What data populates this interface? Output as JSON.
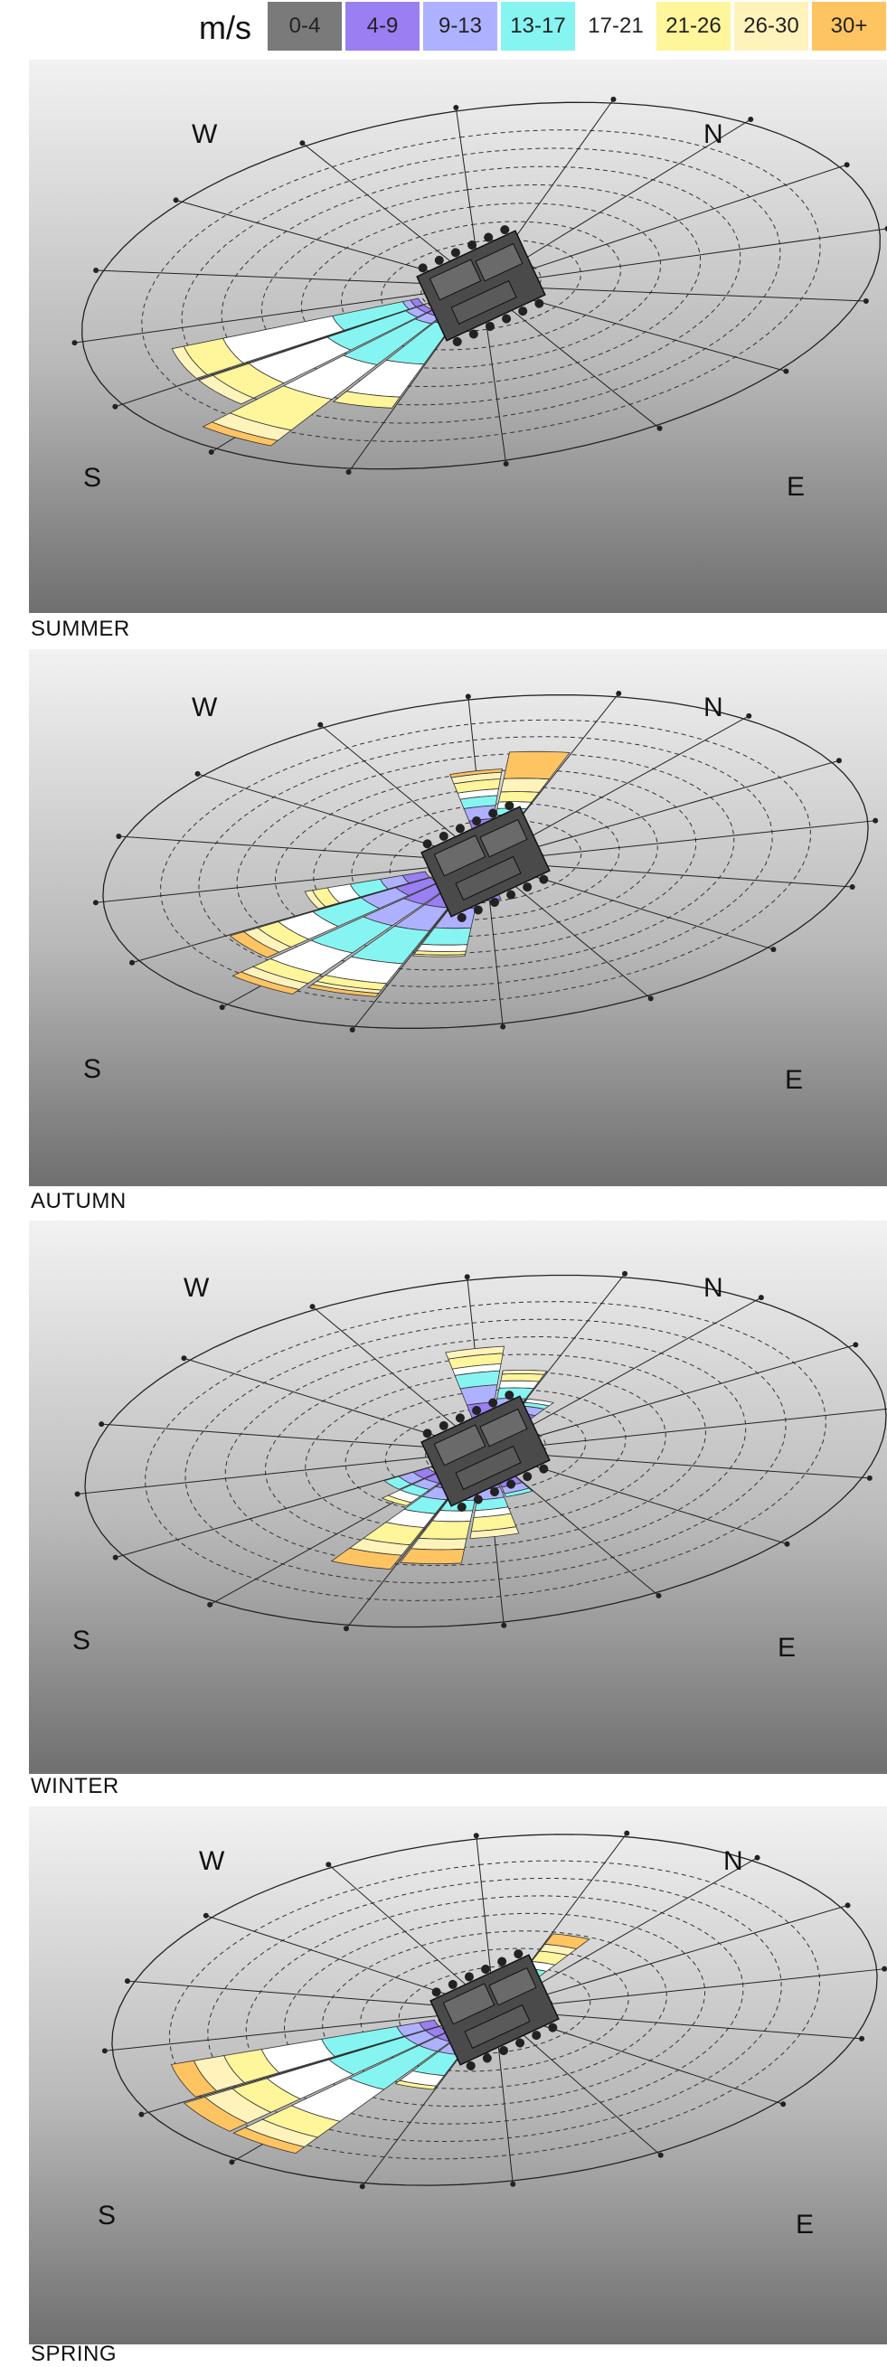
{
  "legend": {
    "unit": "m/s",
    "bins": [
      {
        "label": "0-4",
        "color": "#7a7a7a"
      },
      {
        "label": "4-9",
        "color": "#9a7ff2"
      },
      {
        "label": "9-13",
        "color": "#aeb1ff"
      },
      {
        "label": "13-17",
        "color": "#86f5f2"
      },
      {
        "label": "17-21",
        "color": "#ffffff"
      },
      {
        "label": "21-26",
        "color": "#fff59a"
      },
      {
        "label": "26-30",
        "color": "#fff3bc"
      },
      {
        "label": "30+",
        "color": "#ffc462"
      }
    ]
  },
  "chart_data": [
    {
      "type": "wind-rose",
      "title": "SUMMER",
      "direction_labels": [
        "W",
        "N",
        "S",
        "E"
      ],
      "directions_deg": [
        255,
        240,
        225,
        210
      ],
      "speed_bins": [
        "0-4",
        "4-9",
        "9-13",
        "13-17",
        "17-21",
        "21-26",
        "26-30",
        "30+"
      ],
      "frequency": [
        [
          0.1,
          0.02,
          0.02,
          0.18,
          0.28,
          0.1,
          0.03,
          0.0
        ],
        [
          0.1,
          0.02,
          0.03,
          0.22,
          0.22,
          0.1,
          0.04,
          0.0
        ],
        [
          0.1,
          0.02,
          0.04,
          0.24,
          0.2,
          0.18,
          0.06,
          0.03
        ],
        [
          0.1,
          0.02,
          0.03,
          0.22,
          0.18,
          0.06,
          0.0,
          0.0
        ]
      ]
    },
    {
      "type": "wind-rose",
      "title": "AUTUMN",
      "direction_labels": [
        "W",
        "N",
        "S",
        "E"
      ],
      "directions_deg": [
        0,
        15,
        255,
        240,
        225,
        210,
        195,
        180
      ],
      "speed_bins": [
        "0-4",
        "4-9",
        "9-13",
        "13-17",
        "17-21",
        "21-26",
        "26-30",
        "30+"
      ],
      "frequency": [
        [
          0.1,
          0.1,
          0.08,
          0.06,
          0.04,
          0.06,
          0.04,
          0.02
        ],
        [
          0.1,
          0.06,
          0.06,
          0.04,
          0.04,
          0.06,
          0.08,
          0.16
        ],
        [
          0.1,
          0.06,
          0.06,
          0.08,
          0.06,
          0.04,
          0.02,
          0.0
        ],
        [
          0.1,
          0.1,
          0.1,
          0.14,
          0.1,
          0.06,
          0.04,
          0.04
        ],
        [
          0.1,
          0.12,
          0.14,
          0.18,
          0.14,
          0.06,
          0.04,
          0.03
        ],
        [
          0.1,
          0.12,
          0.14,
          0.2,
          0.12,
          0.04,
          0.02,
          0.02
        ],
        [
          0.1,
          0.12,
          0.12,
          0.1,
          0.04,
          0.02,
          0.01,
          0.0
        ],
        [
          0.1,
          0.08,
          0.0,
          0.0,
          0.0,
          0.0,
          0.0,
          0.0
        ]
      ]
    },
    {
      "type": "wind-rose",
      "title": "WINTER",
      "direction_labels": [
        "W",
        "N",
        "S",
        "E"
      ],
      "directions_deg": [
        0,
        15,
        30,
        240,
        225,
        210,
        195,
        180,
        165
      ],
      "speed_bins": [
        "0-4",
        "4-9",
        "9-13",
        "13-17",
        "17-21",
        "21-26",
        "26-30",
        "30+"
      ],
      "frequency": [
        [
          0.1,
          0.12,
          0.1,
          0.08,
          0.04,
          0.06,
          0.04,
          0.0
        ],
        [
          0.1,
          0.08,
          0.06,
          0.06,
          0.04,
          0.04,
          0.02,
          0.0
        ],
        [
          0.1,
          0.06,
          0.04,
          0.02,
          0.02,
          0.0,
          0.0,
          0.0
        ],
        [
          0.1,
          0.04,
          0.04,
          0.04,
          0.0,
          0.0,
          0.0,
          0.0
        ],
        [
          0.1,
          0.04,
          0.04,
          0.04,
          0.04,
          0.02,
          0.0,
          0.0
        ],
        [
          0.1,
          0.06,
          0.06,
          0.08,
          0.08,
          0.1,
          0.06,
          0.08
        ],
        [
          0.1,
          0.06,
          0.06,
          0.06,
          0.06,
          0.1,
          0.06,
          0.08
        ],
        [
          0.1,
          0.06,
          0.06,
          0.06,
          0.04,
          0.08,
          0.04,
          0.0
        ],
        [
          0.1,
          0.06,
          0.04,
          0.02,
          0.0,
          0.0,
          0.0,
          0.0
        ]
      ]
    },
    {
      "type": "wind-rose",
      "title": "SPRING",
      "direction_labels": [
        "W",
        "N",
        "S",
        "E"
      ],
      "directions_deg": [
        30,
        255,
        240,
        225,
        210
      ],
      "speed_bins": [
        "0-4",
        "4-9",
        "9-13",
        "13-17",
        "17-21",
        "21-26",
        "26-30",
        "30+"
      ],
      "frequency": [
        [
          0.1,
          0.02,
          0.02,
          0.04,
          0.04,
          0.06,
          0.04,
          0.06
        ],
        [
          0.1,
          0.04,
          0.06,
          0.2,
          0.16,
          0.1,
          0.08,
          0.06
        ],
        [
          0.1,
          0.04,
          0.06,
          0.22,
          0.18,
          0.1,
          0.08,
          0.06
        ],
        [
          0.1,
          0.04,
          0.06,
          0.24,
          0.2,
          0.1,
          0.06,
          0.04
        ],
        [
          0.1,
          0.04,
          0.06,
          0.12,
          0.06,
          0.02,
          0.0,
          0.0
        ]
      ]
    }
  ]
}
